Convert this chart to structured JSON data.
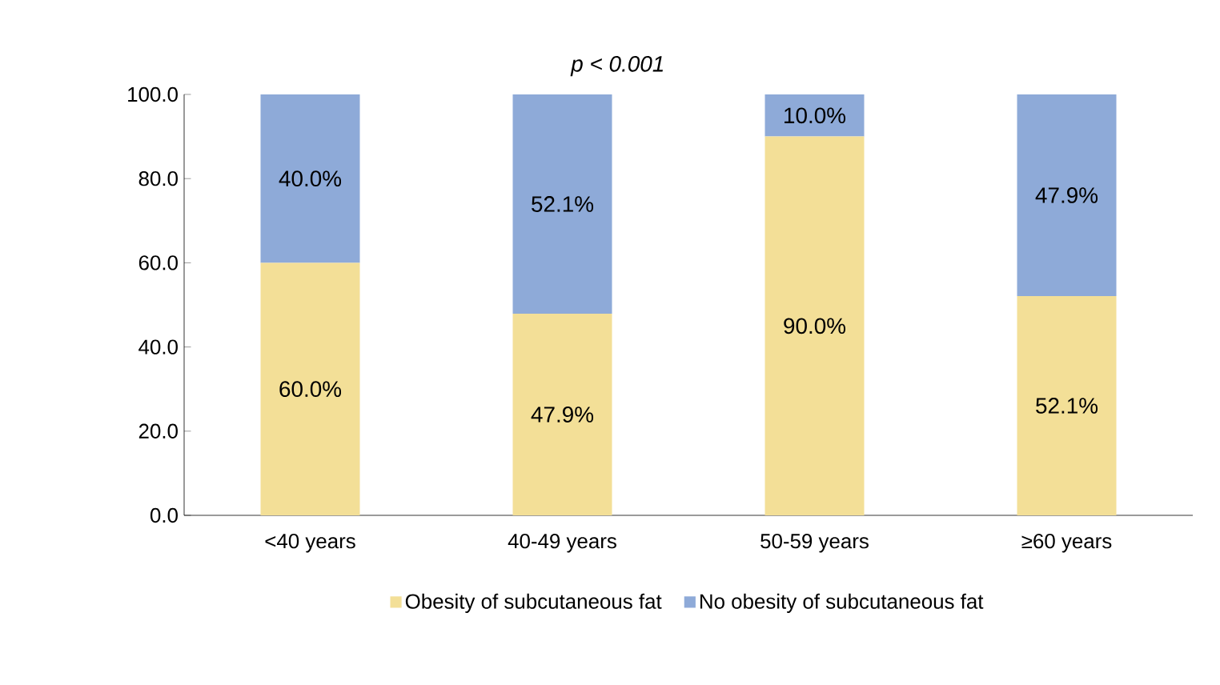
{
  "chart_data": {
    "type": "bar",
    "stacked": true,
    "annotations": [
      "p < 0.001"
    ],
    "categories": [
      "<40 years",
      "40-49 years",
      "50-59 years",
      "≥60 years"
    ],
    "series": [
      {
        "name": "Obesity of subcutaneous fat",
        "color": "#f3df97",
        "values": [
          60.0,
          47.9,
          90.0,
          52.1
        ],
        "value_labels": [
          "60.0%",
          "47.9%",
          "90.0%",
          "52.1%"
        ]
      },
      {
        "name": "No obesity of subcutaneous fat",
        "color": "#8eaad8",
        "values": [
          40.0,
          52.1,
          10.0,
          47.9
        ],
        "value_labels": [
          "40.0%",
          "52.1%",
          "10.0%",
          "47.9%"
        ]
      }
    ],
    "ylim": [
      0,
      100
    ],
    "yticks": [
      {
        "value": 0,
        "label": "0.0"
      },
      {
        "value": 20,
        "label": "20.0"
      },
      {
        "value": 40,
        "label": "40.0"
      },
      {
        "value": 60,
        "label": "60.0"
      },
      {
        "value": 80,
        "label": "80.0"
      },
      {
        "value": 100,
        "label": "100.0"
      }
    ],
    "legend": "bottom"
  }
}
